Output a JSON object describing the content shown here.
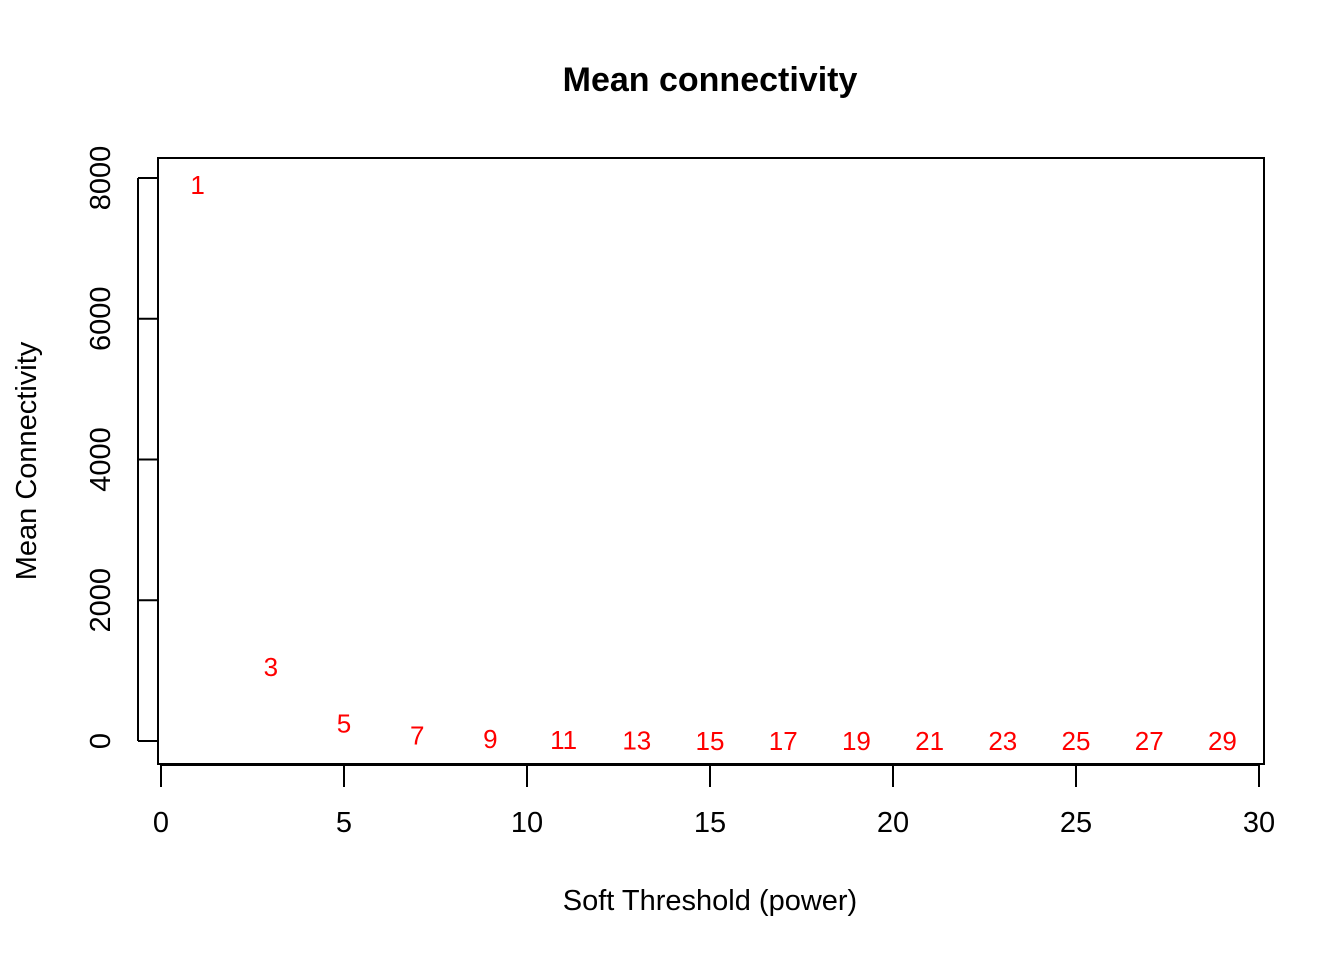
{
  "chart_data": {
    "type": "scatter",
    "title": "Mean connectivity",
    "xlabel": "Soft Threshold (power)",
    "ylabel": "Mean Connectivity",
    "xlim": [
      0,
      30
    ],
    "ylim": [
      0,
      8000
    ],
    "x_ticks": [
      0,
      5,
      10,
      15,
      20,
      25,
      30
    ],
    "y_ticks": [
      0,
      2000,
      4000,
      6000,
      8000
    ],
    "grid": false,
    "legend": "none",
    "marker": "text-label",
    "point_color": "#ff0000",
    "axis_color": "#000000",
    "points": [
      {
        "x": 1,
        "y": 7900,
        "label": "1"
      },
      {
        "x": 3,
        "y": 1050,
        "label": "3"
      },
      {
        "x": 5,
        "y": 250,
        "label": "5"
      },
      {
        "x": 7,
        "y": 75,
        "label": "7"
      },
      {
        "x": 9,
        "y": 30,
        "label": "9"
      },
      {
        "x": 11,
        "y": 12,
        "label": "11"
      },
      {
        "x": 13,
        "y": 6,
        "label": "13"
      },
      {
        "x": 15,
        "y": 3,
        "label": "15"
      },
      {
        "x": 17,
        "y": 2,
        "label": "17"
      },
      {
        "x": 19,
        "y": 1,
        "label": "19"
      },
      {
        "x": 21,
        "y": 1,
        "label": "21"
      },
      {
        "x": 23,
        "y": 0,
        "label": "23"
      },
      {
        "x": 25,
        "y": 0,
        "label": "25"
      },
      {
        "x": 27,
        "y": 0,
        "label": "27"
      },
      {
        "x": 29,
        "y": 0,
        "label": "29"
      }
    ]
  }
}
